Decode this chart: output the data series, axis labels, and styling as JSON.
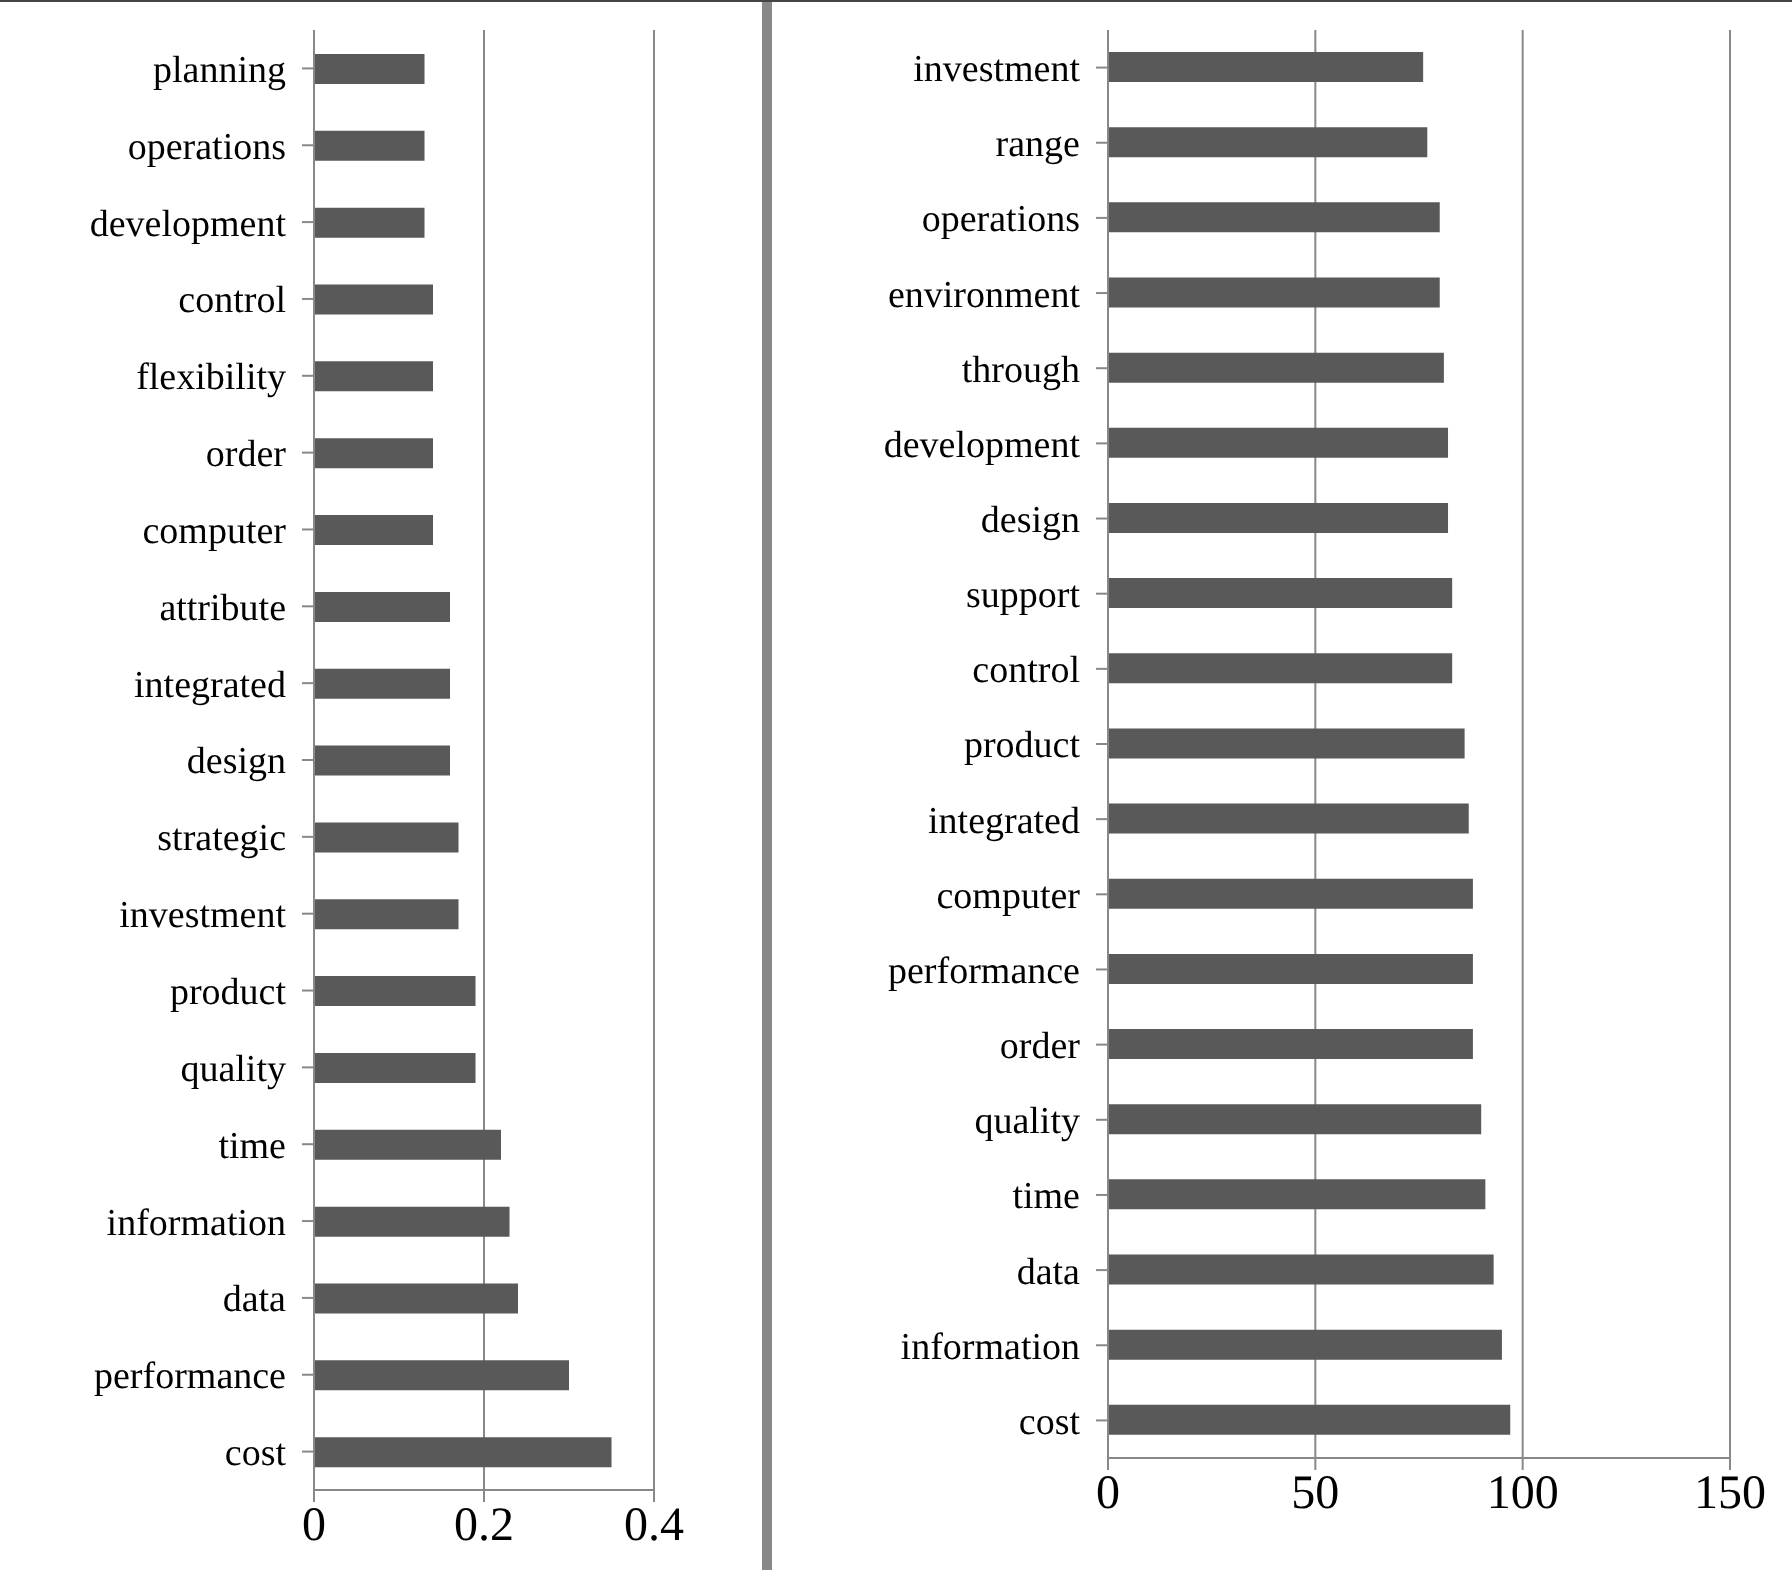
{
  "chart_data": [
    {
      "type": "bar",
      "orientation": "horizontal",
      "categories": [
        "planning",
        "operations",
        "development",
        "control",
        "flexibility",
        "order",
        "computer",
        "attribute",
        "integrated",
        "design",
        "strategic",
        "investment",
        "product",
        "quality",
        "time",
        "information",
        "data",
        "performance",
        "cost"
      ],
      "values": [
        0.13,
        0.13,
        0.13,
        0.14,
        0.14,
        0.14,
        0.14,
        0.16,
        0.16,
        0.16,
        0.17,
        0.17,
        0.19,
        0.19,
        0.22,
        0.23,
        0.24,
        0.3,
        0.35
      ],
      "color": "#595959",
      "xlim": [
        0,
        0.4
      ],
      "xticks": [
        0,
        0.2,
        0.4
      ],
      "grid": "x"
    },
    {
      "type": "bar",
      "orientation": "horizontal",
      "categories": [
        "investment",
        "range",
        "operations",
        "environment",
        "through",
        "development",
        "design",
        "support",
        "control",
        "product",
        "integrated",
        "computer",
        "performance",
        "order",
        "quality",
        "time",
        "data",
        "information",
        "cost"
      ],
      "values": [
        76,
        77,
        80,
        80,
        81,
        82,
        82,
        83,
        83,
        86,
        87,
        88,
        88,
        88,
        90,
        91,
        93,
        95,
        97
      ],
      "color": "#595959",
      "xlim": [
        0,
        150
      ],
      "xticks": [
        0,
        50,
        100,
        150
      ],
      "grid": "x"
    }
  ]
}
